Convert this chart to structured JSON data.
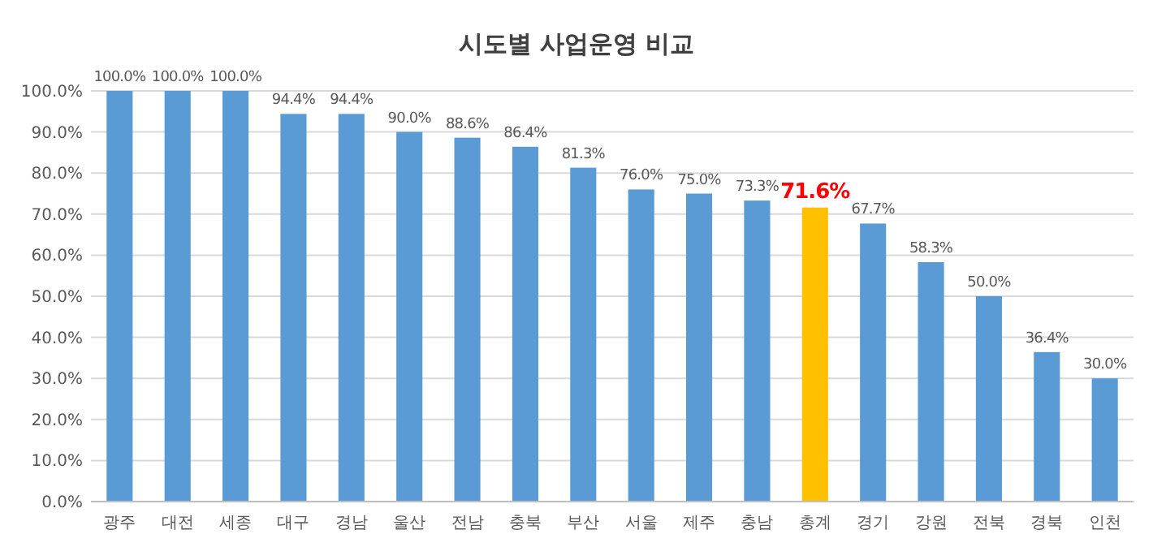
{
  "chart_data": {
    "type": "bar",
    "title": "시도별 사업운영 비교",
    "categories": [
      "광주",
      "대전",
      "세종",
      "대구",
      "경남",
      "울산",
      "전남",
      "충북",
      "부산",
      "서울",
      "제주",
      "충남",
      "총계",
      "경기",
      "강원",
      "전북",
      "경북",
      "인천"
    ],
    "values": [
      100,
      100,
      100,
      94.4,
      94.4,
      90,
      88.6,
      86.4,
      81.3,
      76,
      75,
      73.3,
      71.6,
      67.7,
      58.3,
      50,
      36.4,
      30
    ],
    "value_labels": [
      "100.0%",
      "100.0%",
      "100.0%",
      "94.4%",
      "94.4%",
      "90.0%",
      "88.6%",
      "86.4%",
      "81.3%",
      "76.0%",
      "75.0%",
      "73.3%",
      "71.6%",
      "67.7%",
      "58.3%",
      "50.0%",
      "36.4%",
      "30.0%"
    ],
    "colors": [
      "#5b9bd5",
      "#5b9bd5",
      "#5b9bd5",
      "#5b9bd5",
      "#5b9bd5",
      "#5b9bd5",
      "#5b9bd5",
      "#5b9bd5",
      "#5b9bd5",
      "#5b9bd5",
      "#5b9bd5",
      "#5b9bd5",
      "#ffc000",
      "#5b9bd5",
      "#5b9bd5",
      "#5b9bd5",
      "#5b9bd5",
      "#5b9bd5"
    ],
    "ylim": [
      0,
      100
    ],
    "yticks": [
      {
        "value": 0,
        "label": "0.0%"
      },
      {
        "value": 10,
        "label": "10.0%"
      },
      {
        "value": 20,
        "label": "20.0%"
      },
      {
        "value": 30,
        "label": "30.0%"
      },
      {
        "value": 40,
        "label": "40.0%"
      },
      {
        "value": 50,
        "label": "50.0%"
      },
      {
        "value": 60,
        "label": "60.0%"
      },
      {
        "value": 70,
        "label": "70.0%"
      },
      {
        "value": 80,
        "label": "80.0%"
      },
      {
        "value": 90,
        "label": "90.0%"
      },
      {
        "value": 100,
        "label": "100.0%"
      }
    ],
    "grid": "y"
  }
}
